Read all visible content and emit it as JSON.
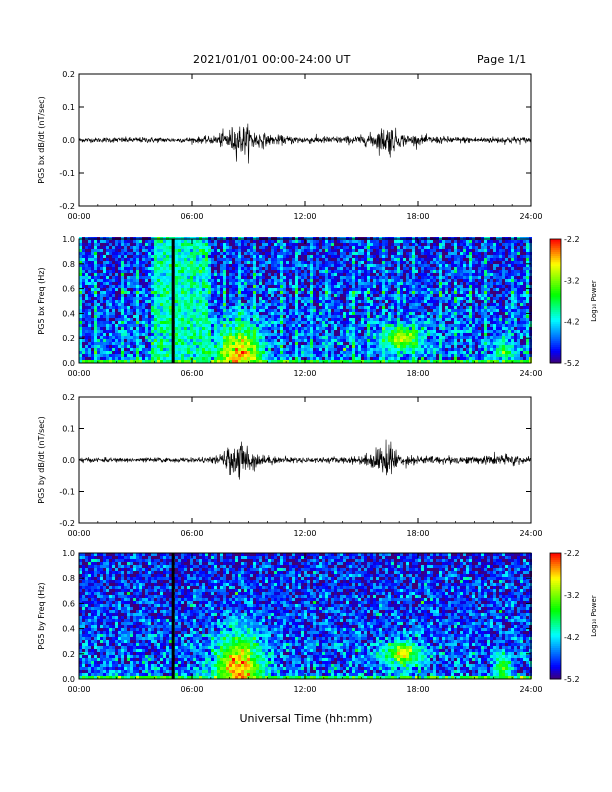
{
  "header": {
    "title": "2021/01/01  00:00-24:00 UT",
    "page": "Page 1/1"
  },
  "chart_data": [
    {
      "type": "line",
      "ylabel": "PG5 bx dB/dt (nT/sec)",
      "xlim": [
        0,
        24
      ],
      "ylim": [
        -0.2,
        0.2
      ],
      "x_ticks": [
        "00:00",
        "06:00",
        "12:00",
        "18:00",
        "24:00"
      ],
      "y_ticks": [
        "-0.2",
        "-0.1",
        "0.0",
        "0.1",
        "0.2"
      ],
      "series": [
        {
          "x": [
            0,
            1,
            2,
            3,
            4,
            5,
            6,
            7,
            7.5,
            8,
            8.5,
            9,
            9.5,
            10,
            11,
            12,
            13,
            14,
            15,
            15.5,
            16,
            16.5,
            17,
            18,
            19,
            20,
            21,
            22,
            23,
            24
          ],
          "amplitude": [
            0.005,
            0.005,
            0.006,
            0.006,
            0.006,
            0.005,
            0.006,
            0.008,
            0.015,
            0.025,
            0.035,
            0.03,
            0.02,
            0.012,
            0.009,
            0.008,
            0.008,
            0.008,
            0.01,
            0.015,
            0.025,
            0.035,
            0.015,
            0.01,
            0.008,
            0.007,
            0.007,
            0.007,
            0.008,
            0.006
          ]
        }
      ]
    },
    {
      "type": "heatmap",
      "ylabel": "PG5 bx Freq (Hz)",
      "xlim": [
        0,
        24
      ],
      "ylim": [
        0,
        1.0
      ],
      "x_ticks": [
        "00:00",
        "06:00",
        "12:00",
        "18:00",
        "24:00"
      ],
      "y_ticks": [
        "0.0",
        "0.2",
        "0.4",
        "0.6",
        "0.8",
        "1.0"
      ],
      "colorbar": {
        "label": "Log₁₀ Power",
        "min": -5.2,
        "max": -2.2,
        "ticks": [
          "-2.2",
          "-3.2",
          "-4.2",
          "-5.2"
        ]
      },
      "gap_hours": [
        5.0
      ],
      "vertical_stripes": true,
      "horizontal_line_hz": 0.58,
      "bright_band_hours": [
        4.0,
        6.8
      ],
      "enhancements": [
        {
          "t": 8.5,
          "f": 0.05,
          "spread_t": 1.2,
          "spread_f": 0.25,
          "level": -2.6
        },
        {
          "t": 17.2,
          "f": 0.2,
          "spread_t": 1.0,
          "spread_f": 0.1,
          "level": -3.0
        },
        {
          "t": 22.5,
          "f": 0.1,
          "spread_t": 0.4,
          "spread_f": 0.1,
          "level": -3.5
        }
      ]
    },
    {
      "type": "line",
      "ylabel": "PG5 by dB/dt (nT/sec)",
      "xlim": [
        0,
        24
      ],
      "ylim": [
        -0.2,
        0.2
      ],
      "x_ticks": [
        "00:00",
        "06:00",
        "12:00",
        "18:00",
        "24:00"
      ],
      "y_ticks": [
        "-0.2",
        "-0.1",
        "0.0",
        "0.1",
        "0.2"
      ],
      "series": [
        {
          "x": [
            0,
            1,
            2,
            3,
            4,
            5,
            6,
            7,
            7.5,
            8,
            8.5,
            9,
            9.5,
            10,
            11,
            12,
            13,
            14,
            15,
            15.5,
            16,
            16.5,
            17,
            18,
            19,
            20,
            21,
            22,
            23,
            24
          ],
          "amplitude": [
            0.005,
            0.005,
            0.005,
            0.005,
            0.005,
            0.005,
            0.005,
            0.006,
            0.012,
            0.03,
            0.045,
            0.035,
            0.015,
            0.01,
            0.007,
            0.006,
            0.006,
            0.007,
            0.01,
            0.02,
            0.03,
            0.045,
            0.015,
            0.01,
            0.009,
            0.009,
            0.008,
            0.012,
            0.014,
            0.006
          ]
        }
      ]
    },
    {
      "type": "heatmap",
      "ylabel": "PG5 by Freq (Hz)",
      "xlim": [
        0,
        24
      ],
      "ylim": [
        0,
        1.0
      ],
      "x_ticks": [
        "00:00",
        "06:00",
        "12:00",
        "18:00",
        "24:00"
      ],
      "y_ticks": [
        "0.0",
        "0.2",
        "0.4",
        "0.6",
        "0.8",
        "1.0"
      ],
      "colorbar": {
        "label": "Log₁₀ Power",
        "min": -5.2,
        "max": -2.2,
        "ticks": [
          "-2.2",
          "-3.2",
          "-4.2",
          "-5.2"
        ]
      },
      "gap_hours": [
        5.0
      ],
      "vertical_stripes": false,
      "enhancements": [
        {
          "t": 8.5,
          "f": 0.05,
          "spread_t": 1.2,
          "spread_f": 0.3,
          "level": -2.5
        },
        {
          "t": 17.2,
          "f": 0.2,
          "spread_t": 1.0,
          "spread_f": 0.1,
          "level": -3.0
        },
        {
          "t": 22.5,
          "f": 0.1,
          "spread_t": 0.4,
          "spread_f": 0.1,
          "level": -3.4
        }
      ]
    }
  ],
  "xlabel": "Universal Time (hh:mm)"
}
